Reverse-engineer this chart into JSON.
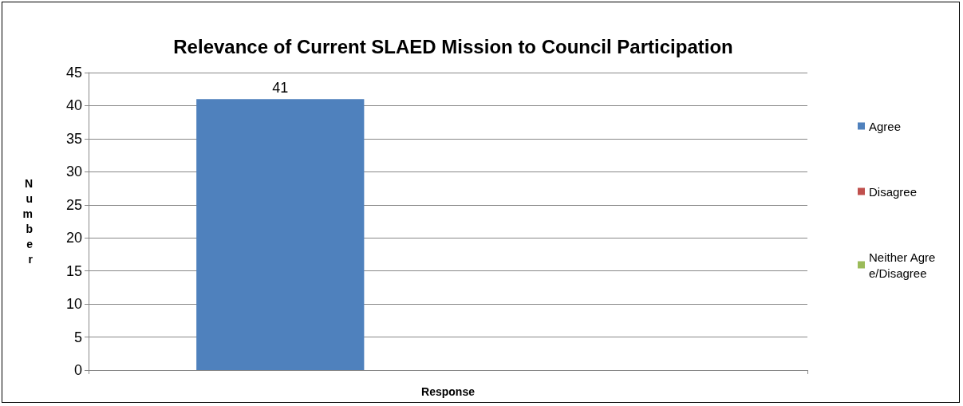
{
  "chart_data": {
    "type": "bar",
    "title": "Relevance of Current SLAED Mission to Council Participation",
    "xlabel": "Response",
    "ylabel": "Number",
    "categories": [
      null
    ],
    "series": [
      {
        "name": "Agree",
        "color": "#4f81bd",
        "values": [
          41
        ],
        "value_labels": [
          "41"
        ]
      },
      {
        "name": "Disagree",
        "color": "#c0504d",
        "values": [
          0
        ],
        "value_labels": [
          null
        ]
      },
      {
        "name": "Neither Agree/Disagree",
        "color": "#9bbb59",
        "values": [
          0
        ],
        "value_labels": [
          null
        ]
      }
    ],
    "ylim": [
      0,
      45
    ],
    "yticks": [
      0,
      5,
      10,
      15,
      20,
      25,
      30,
      35,
      40,
      45
    ],
    "grid": "y",
    "legend": "right"
  }
}
